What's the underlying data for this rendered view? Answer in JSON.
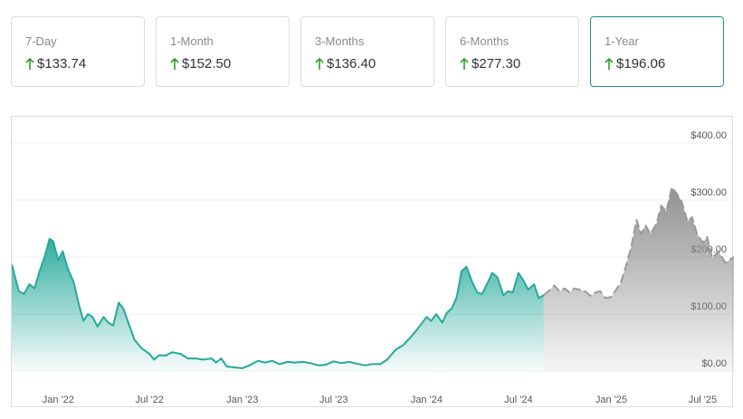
{
  "colors": {
    "accent": "#1e8f86",
    "history_line": "#26a99a",
    "forecast_line": "#9a9a9a",
    "up_arrow": "#2aa02a"
  },
  "cards": [
    {
      "label": "7-Day",
      "value": "$133.74",
      "icon": "arrow-up-icon",
      "active": false
    },
    {
      "label": "1-Month",
      "value": "$152.50",
      "icon": "arrow-up-icon",
      "active": false
    },
    {
      "label": "3-Months",
      "value": "$136.40",
      "icon": "arrow-up-icon",
      "active": false
    },
    {
      "label": "6-Months",
      "value": "$277.30",
      "icon": "arrow-up-icon",
      "active": false
    },
    {
      "label": "1-Year",
      "value": "$196.06",
      "icon": "arrow-up-icon",
      "active": true
    }
  ],
  "chart_data": {
    "type": "area",
    "ylim": [
      0,
      400
    ],
    "yticks": [
      {
        "value": 0,
        "label": "$0.00"
      },
      {
        "value": 100,
        "label": "$100.00"
      },
      {
        "value": 200,
        "label": "$200.00"
      },
      {
        "value": 300,
        "label": "$300.00"
      },
      {
        "value": 400,
        "label": "$400.00"
      }
    ],
    "xlim": [
      "2021-10-01",
      "2025-09-01"
    ],
    "xticks": [
      {
        "date": "2022-01-01",
        "label": "Jan '22"
      },
      {
        "date": "2022-07-01",
        "label": "Jul '22"
      },
      {
        "date": "2023-01-01",
        "label": "Jan '23"
      },
      {
        "date": "2023-07-01",
        "label": "Jul '23"
      },
      {
        "date": "2024-01-01",
        "label": "Jan '24"
      },
      {
        "date": "2024-07-01",
        "label": "Jul '24"
      },
      {
        "date": "2025-01-01",
        "label": "Jan '25"
      },
      {
        "date": "2025-07-01",
        "label": "Jul '25"
      }
    ],
    "grid": true,
    "series": [
      {
        "kind": "history",
        "points": [
          [
            "2021-10-01",
            187
          ],
          [
            "2021-10-15",
            140
          ],
          [
            "2021-10-25",
            135
          ],
          [
            "2021-11-05",
            152
          ],
          [
            "2021-11-15",
            145
          ],
          [
            "2021-11-25",
            175
          ],
          [
            "2021-12-05",
            200
          ],
          [
            "2021-12-15",
            232
          ],
          [
            "2021-12-22",
            228
          ],
          [
            "2022-01-01",
            195
          ],
          [
            "2022-01-10",
            210
          ],
          [
            "2022-01-20",
            180
          ],
          [
            "2022-02-01",
            155
          ],
          [
            "2022-02-10",
            120
          ],
          [
            "2022-02-20",
            88
          ],
          [
            "2022-03-01",
            100
          ],
          [
            "2022-03-10",
            95
          ],
          [
            "2022-03-20",
            78
          ],
          [
            "2022-04-01",
            95
          ],
          [
            "2022-04-10",
            85
          ],
          [
            "2022-04-20",
            80
          ],
          [
            "2022-05-01",
            120
          ],
          [
            "2022-05-10",
            110
          ],
          [
            "2022-05-20",
            85
          ],
          [
            "2022-06-01",
            55
          ],
          [
            "2022-06-15",
            40
          ],
          [
            "2022-07-01",
            30
          ],
          [
            "2022-07-10",
            20
          ],
          [
            "2022-07-20",
            28
          ],
          [
            "2022-08-01",
            27
          ],
          [
            "2022-08-15",
            33
          ],
          [
            "2022-09-01",
            30
          ],
          [
            "2022-09-15",
            22
          ],
          [
            "2022-10-01",
            22
          ],
          [
            "2022-10-15",
            20
          ],
          [
            "2022-11-01",
            22
          ],
          [
            "2022-11-10",
            15
          ],
          [
            "2022-11-20",
            22
          ],
          [
            "2022-12-01",
            8
          ],
          [
            "2022-12-20",
            6
          ],
          [
            "2023-01-01",
            5
          ],
          [
            "2023-01-15",
            10
          ],
          [
            "2023-02-01",
            18
          ],
          [
            "2023-02-15",
            15
          ],
          [
            "2023-03-01",
            18
          ],
          [
            "2023-03-15",
            12
          ],
          [
            "2023-04-01",
            16
          ],
          [
            "2023-04-15",
            15
          ],
          [
            "2023-05-01",
            16
          ],
          [
            "2023-05-15",
            14
          ],
          [
            "2023-06-01",
            10
          ],
          [
            "2023-06-15",
            11
          ],
          [
            "2023-07-01",
            17
          ],
          [
            "2023-07-15",
            14
          ],
          [
            "2023-08-01",
            16
          ],
          [
            "2023-08-15",
            13
          ],
          [
            "2023-09-01",
            10
          ],
          [
            "2023-09-15",
            12
          ],
          [
            "2023-10-01",
            12
          ],
          [
            "2023-10-15",
            20
          ],
          [
            "2023-11-01",
            38
          ],
          [
            "2023-11-15",
            45
          ],
          [
            "2023-12-01",
            60
          ],
          [
            "2023-12-15",
            75
          ],
          [
            "2024-01-01",
            95
          ],
          [
            "2024-01-10",
            88
          ],
          [
            "2024-01-20",
            100
          ],
          [
            "2024-02-01",
            85
          ],
          [
            "2024-02-10",
            102
          ],
          [
            "2024-02-20",
            110
          ],
          [
            "2024-03-01",
            130
          ],
          [
            "2024-03-10",
            175
          ],
          [
            "2024-03-20",
            183
          ],
          [
            "2024-04-01",
            155
          ],
          [
            "2024-04-10",
            138
          ],
          [
            "2024-04-20",
            135
          ],
          [
            "2024-05-01",
            155
          ],
          [
            "2024-05-10",
            172
          ],
          [
            "2024-05-20",
            165
          ],
          [
            "2024-06-01",
            133
          ],
          [
            "2024-06-10",
            140
          ],
          [
            "2024-06-20",
            138
          ],
          [
            "2024-07-01",
            172
          ],
          [
            "2024-07-10",
            160
          ],
          [
            "2024-07-20",
            143
          ],
          [
            "2024-08-01",
            152
          ],
          [
            "2024-08-10",
            128
          ],
          [
            "2024-08-20",
            133
          ]
        ]
      },
      {
        "kind": "forecast",
        "points": [
          [
            "2024-08-20",
            133
          ],
          [
            "2024-09-01",
            142
          ],
          [
            "2024-09-10",
            150
          ],
          [
            "2024-09-20",
            140
          ],
          [
            "2024-10-01",
            145
          ],
          [
            "2024-10-10",
            138
          ],
          [
            "2024-10-20",
            145
          ],
          [
            "2024-11-01",
            142
          ],
          [
            "2024-11-10",
            140
          ],
          [
            "2024-11-20",
            132
          ],
          [
            "2024-12-01",
            138
          ],
          [
            "2024-12-10",
            140
          ],
          [
            "2024-12-20",
            128
          ],
          [
            "2025-01-01",
            130
          ],
          [
            "2025-01-10",
            142
          ],
          [
            "2025-01-20",
            155
          ],
          [
            "2025-02-01",
            190
          ],
          [
            "2025-02-10",
            220
          ],
          [
            "2025-02-20",
            265
          ],
          [
            "2025-03-01",
            240
          ],
          [
            "2025-03-10",
            255
          ],
          [
            "2025-03-20",
            240
          ],
          [
            "2025-04-01",
            260
          ],
          [
            "2025-04-10",
            290
          ],
          [
            "2025-04-20",
            280
          ],
          [
            "2025-05-01",
            322
          ],
          [
            "2025-05-10",
            312
          ],
          [
            "2025-05-20",
            298
          ],
          [
            "2025-06-01",
            262
          ],
          [
            "2025-06-10",
            270
          ],
          [
            "2025-06-20",
            240
          ],
          [
            "2025-07-01",
            225
          ],
          [
            "2025-07-10",
            235
          ],
          [
            "2025-07-20",
            198
          ],
          [
            "2025-08-01",
            210
          ],
          [
            "2025-08-15",
            190
          ],
          [
            "2025-09-01",
            200
          ]
        ]
      }
    ]
  }
}
